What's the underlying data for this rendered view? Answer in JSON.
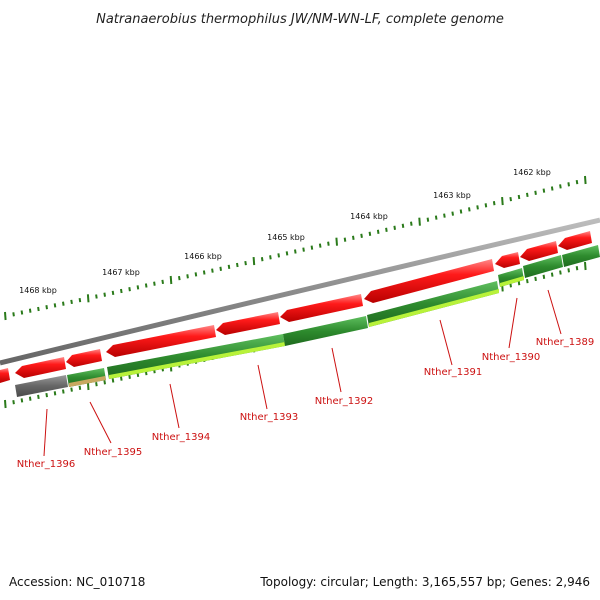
{
  "title": "Natranaerobius thermophilus JW/NM-WN-LF, complete genome",
  "footer": {
    "accession": "Accession: NC_010718",
    "topology": "Topology: circular; Length: 3,165,557 bp; Genes: 2,946"
  },
  "colors": {
    "forward_gene": "#ee1111",
    "reverse_gene": "#2e8b2e",
    "reverse_gene_light": "#b8f23a",
    "backbone": "#8c8c8c",
    "tick": "#2a7a1a",
    "label": "#cc1111"
  },
  "kbp_labels": [
    "1462 kbp",
    "1463 kbp",
    "1464 kbp",
    "1465 kbp",
    "1466 kbp",
    "1467 kbp",
    "1468 kbp"
  ],
  "genes": [
    "Nther_1389",
    "Nther_1390",
    "Nther_1391",
    "Nther_1392",
    "Nther_1393",
    "Nther_1394",
    "Nther_1395",
    "Nther_1396"
  ]
}
